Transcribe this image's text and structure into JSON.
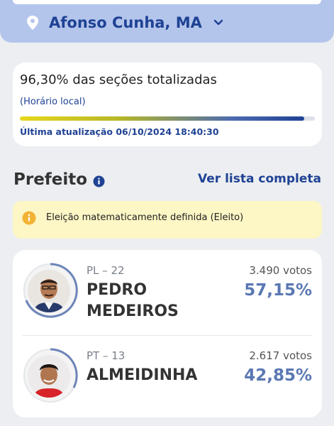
{
  "location": {
    "name": "Afonso Cunha, MA",
    "pin_icon": "map-pin-icon",
    "dropdown_icon": "chevron-down-icon"
  },
  "progress": {
    "title": "96,30% das seções totalizadas",
    "subtitle": "(Horário local)",
    "percent": 96.3,
    "last_update": "Última atualização 06/10/2024 18:40:30"
  },
  "section": {
    "title": "Prefeito",
    "info_icon": "info-icon",
    "see_all_label": "Ver lista completa"
  },
  "alert": {
    "icon": "info-circle-icon",
    "text": "Eleição matematicamente definida (Eleito)"
  },
  "candidates": [
    {
      "party": "PL – 22",
      "name": "PEDRO MEDEIROS",
      "votes": "3.490 votos",
      "percent_label": "57,15%",
      "percent": 57.15
    },
    {
      "party": "PT – 13",
      "name": "ALMEIDINHA",
      "votes": "2.617 votos",
      "percent_label": "42,85%",
      "percent": 42.85
    }
  ],
  "colors": {
    "brand_blue": "#1f4294",
    "header_bg": "#b4c5ec",
    "alert_bg": "#fdf6c5",
    "percent_text": "#5a78b3"
  }
}
